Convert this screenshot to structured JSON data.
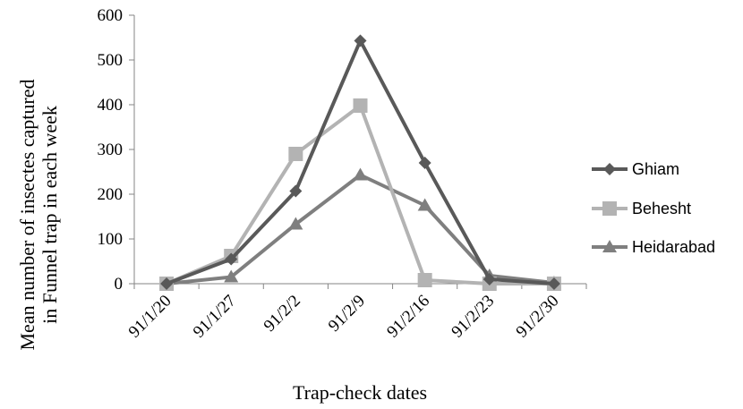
{
  "chart_data": {
    "type": "line",
    "categories": [
      "91/1/20",
      "91/1/27",
      "91/2/2",
      "91/2/9",
      "91/2/16",
      "91/2/23",
      "91/2/30"
    ],
    "ylim": [
      0,
      600
    ],
    "yticks": [
      0,
      100,
      200,
      300,
      400,
      500,
      600
    ],
    "xlabel": "Trap-check dates",
    "ylabel_line1": "Mean number of insectes captured",
    "ylabel_line2": "in Funnel trap in each  week",
    "grid": false,
    "legend_position": "right",
    "series": [
      {
        "name": "Ghiam",
        "marker": "diamond",
        "color": "#595959",
        "values": [
          0,
          55,
          207,
          543,
          270,
          10,
          0
        ]
      },
      {
        "name": "Behesht",
        "marker": "square",
        "color": "#b3b3b3",
        "values": [
          0,
          62,
          290,
          398,
          8,
          0,
          0
        ]
      },
      {
        "name": "Heidarabad",
        "marker": "triangle",
        "color": "#7f7f7f",
        "values": [
          0,
          15,
          133,
          243,
          175,
          18,
          2
        ]
      }
    ]
  }
}
